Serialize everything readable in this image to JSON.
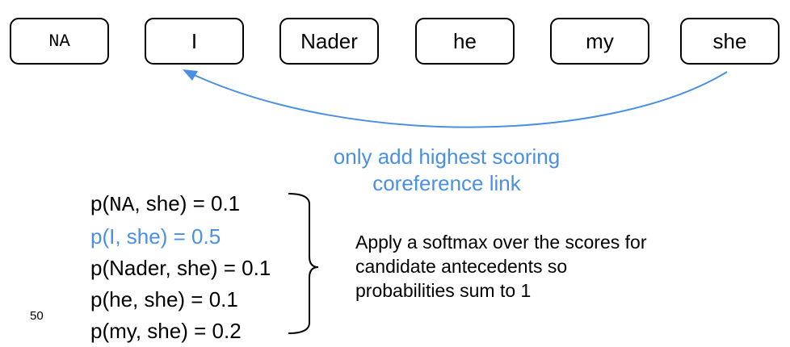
{
  "tokens": [
    {
      "label": "NA",
      "mono": true
    },
    {
      "label": "I",
      "mono": false
    },
    {
      "label": "Nader",
      "mono": false
    },
    {
      "label": "he",
      "mono": false
    },
    {
      "label": "my",
      "mono": false
    },
    {
      "label": "she",
      "mono": false
    }
  ],
  "note": {
    "line1": "only add highest scoring",
    "line2": "coreference link"
  },
  "probabilities": [
    {
      "prefix": "p(",
      "antecedent": "NA",
      "mono": true,
      "suffix": ", she) = 0.1",
      "highlight": false
    },
    {
      "prefix": "p(",
      "antecedent": "I",
      "mono": false,
      "suffix": ", she) = 0.5",
      "highlight": true
    },
    {
      "prefix": "p(",
      "antecedent": "Nader",
      "mono": false,
      "suffix": ", she) = 0.1",
      "highlight": false
    },
    {
      "prefix": "p(",
      "antecedent": "he",
      "mono": false,
      "suffix": ", she) = 0.1",
      "highlight": false
    },
    {
      "prefix": "p(",
      "antecedent": "my",
      "mono": false,
      "suffix": ", she) = 0.2",
      "highlight": false
    }
  ],
  "explanation": {
    "line1": "Apply a softmax over the scores for",
    "line2": "candidate antecedents so",
    "line3": "probabilities sum to 1"
  },
  "page_number": "50",
  "colors": {
    "highlight": "#4a90e2",
    "text": "#000000"
  }
}
